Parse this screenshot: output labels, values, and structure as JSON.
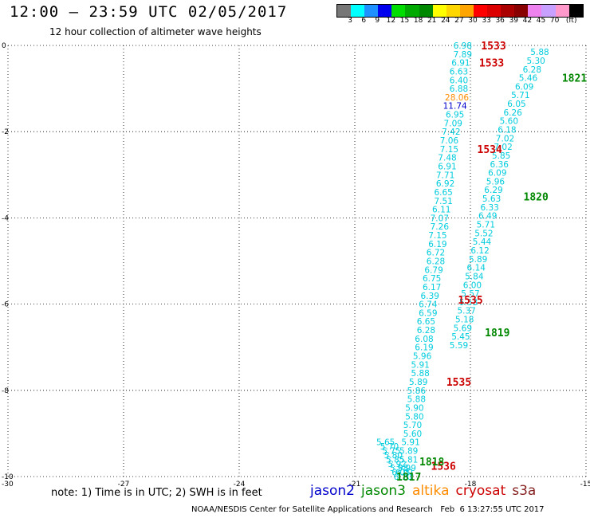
{
  "header": {
    "title": "12:00 – 23:59 UTC 02/05/2017",
    "subtitle": "12 hour collection of altimeter wave heights"
  },
  "colorbar": {
    "colors": [
      "#777777",
      "#00ffff",
      "#1e90ff",
      "#0000ee",
      "#00dd00",
      "#00aa00",
      "#008800",
      "#ffff00",
      "#ffd700",
      "#ffa500",
      "#ff0000",
      "#dd0000",
      "#aa0000",
      "#880000",
      "#ee82ee",
      "#c8a0ff",
      "#ff99cc",
      "#000000"
    ],
    "labels": [
      "3",
      "6",
      "9",
      "12",
      "15",
      "18",
      "21",
      "24",
      "27",
      "30",
      "33",
      "36",
      "39",
      "42",
      "45",
      "70",
      "(ft)"
    ]
  },
  "note": "note: 1) Time is in UTC; 2) SWH is in feet",
  "satellites": [
    {
      "name": "jason2",
      "color": "#0000cc"
    },
    {
      "name": "jason3",
      "color": "#008800"
    },
    {
      "name": "altika",
      "color": "#ff8c00"
    },
    {
      "name": "cryosat",
      "color": "#cc0000"
    },
    {
      "name": "s3a",
      "color": "#882222"
    }
  ],
  "credit": "NOAA/NESDIS Center for Satellite Applications and Research   Feb  6 13:27:55 UTC 2017",
  "chart_data": {
    "type": "scatter",
    "title": "12:00 – 23:59 UTC 02/05/2017",
    "subtitle": "12 hour collection of altimeter wave heights",
    "xlim": [
      -30,
      -15
    ],
    "ylim": [
      -10,
      0
    ],
    "xticks": [
      "-30",
      "-27",
      "-24",
      "-21",
      "-18",
      "-15"
    ],
    "yticks": [
      "0",
      "-2",
      "-4",
      "-6",
      "-8",
      "-10"
    ],
    "grid": true,
    "series": [
      {
        "name": "cryosat",
        "color": "#00ccdd",
        "x": [
          -18.2,
          -18.2,
          -18.25,
          -18.3,
          -18.3,
          -18.3,
          -18.35,
          -18.4,
          -18.4,
          -18.45,
          -18.5,
          -18.55,
          -18.55,
          -18.6,
          -18.6,
          -18.65,
          -18.65,
          -18.7,
          -18.7,
          -18.75,
          -18.8,
          -18.8,
          -18.85,
          -18.85,
          -18.9,
          -18.9,
          -18.95,
          -19.0,
          -19.0,
          -19.05,
          -19.1,
          -19.1,
          -19.15,
          -19.15,
          -19.2,
          -19.2,
          -19.25,
          -19.3,
          -19.3,
          -19.35,
          -19.4,
          -19.4,
          -19.45,
          -19.45,
          -19.5,
          -19.5,
          -19.55,
          -19.6,
          -19.6,
          -19.65,
          -19.7,
          -19.75,
          -19.8,
          -19.85,
          -19.9,
          -19.95,
          -20.0,
          -20.05,
          -20.1,
          -20.2
        ],
        "y": [
          -0.0,
          -0.2,
          -0.4,
          -0.6,
          -0.8,
          -1.0,
          -1.2,
          -1.4,
          -1.6,
          -1.8,
          -2.0,
          -2.2,
          -2.4,
          -2.6,
          -2.8,
          -3.0,
          -3.2,
          -3.4,
          -3.6,
          -3.8,
          -4.0,
          -4.2,
          -4.4,
          -4.6,
          -4.8,
          -5.0,
          -5.2,
          -5.4,
          -5.6,
          -5.8,
          -6.0,
          -6.2,
          -6.4,
          -6.6,
          -6.8,
          -7.0,
          -7.2,
          -7.4,
          -7.6,
          -7.8,
          -8.0,
          -8.2,
          -8.4,
          -8.6,
          -8.8,
          -9.0,
          -9.2,
          -9.4,
          -9.6,
          -9.8,
          -9.9,
          -10.0,
          -9.9,
          -9.8,
          -9.7,
          -9.6,
          -9.5,
          -9.4,
          -9.3,
          -9.2
        ],
        "labels": [
          "6.98",
          "7.89",
          "6.91",
          "6.63",
          "6.40",
          "6.88",
          "28.06",
          "11.74",
          "6.95",
          "7.09",
          "7.42",
          "7.06",
          "7.15",
          "7.48",
          "6.91",
          "7.71",
          "6.92",
          "6.65",
          "7.51",
          "6.11",
          "7.07",
          "7.26",
          "7.15",
          "6.19",
          "6.72",
          "6.28",
          "6.79",
          "6.75",
          "6.17",
          "6.39",
          "6.74",
          "6.59",
          "6.65",
          "6.28",
          "6.08",
          "6.19",
          "5.96",
          "5.91",
          "5.88",
          "5.89",
          "5.86",
          "5.88",
          "5.90",
          "5.80",
          "5.70",
          "5.60",
          "5.91",
          "5.89",
          "5.81",
          "5.99",
          "6.01",
          "6.10",
          "6.05",
          "5.98",
          "5.92",
          "5.85",
          "5.80",
          "5.75",
          "5.70",
          "5.65"
        ]
      },
      {
        "name": "jason3",
        "color": "#00ccdd",
        "x": [
          -16.2,
          -16.3,
          -16.4,
          -16.5,
          -16.6,
          -16.7,
          -16.8,
          -16.9,
          -17.0,
          -17.05,
          -17.1,
          -17.15,
          -17.2,
          -17.25,
          -17.3,
          -17.35,
          -17.4,
          -17.45,
          -17.5,
          -17.55,
          -17.6,
          -17.65,
          -17.7,
          -17.75,
          -17.8,
          -17.85,
          -17.9,
          -17.95,
          -18.0,
          -18.05,
          -18.1,
          -18.15,
          -18.2,
          -18.25,
          -18.3
        ],
        "y": [
          -0.15,
          -0.35,
          -0.55,
          -0.75,
          -0.95,
          -1.15,
          -1.35,
          -1.55,
          -1.75,
          -1.95,
          -2.15,
          -2.35,
          -2.55,
          -2.75,
          -2.95,
          -3.15,
          -3.35,
          -3.55,
          -3.75,
          -3.95,
          -4.15,
          -4.35,
          -4.55,
          -4.75,
          -4.95,
          -5.15,
          -5.35,
          -5.55,
          -5.75,
          -5.95,
          -6.15,
          -6.35,
          -6.55,
          -6.75,
          -6.95
        ],
        "labels": [
          "5.88",
          "5.30",
          "6.28",
          "5.46",
          "6.09",
          "5.71",
          "6.05",
          "6.26",
          "5.60",
          "6.18",
          "7.02",
          "7.02",
          "5.85",
          "6.36",
          "6.09",
          "5.96",
          "6.29",
          "5.63",
          "6.33",
          "6.49",
          "5.71",
          "5.52",
          "5.44",
          "6.12",
          "5.89",
          "6.14",
          "5.84",
          "6.00",
          "5.57",
          "5.53",
          "5.37",
          "5.18",
          "5.69",
          "5.45",
          "5.59"
        ]
      }
    ],
    "annotations": [
      {
        "text": "1533",
        "x": -17.4,
        "y": 0.0,
        "color": "#cc0000"
      },
      {
        "text": "1533",
        "x": -17.45,
        "y": -0.4,
        "color": "#cc0000"
      },
      {
        "text": "1534",
        "x": -17.5,
        "y": -2.4,
        "color": "#cc0000"
      },
      {
        "text": "1535",
        "x": -18.0,
        "y": -5.9,
        "color": "#cc0000"
      },
      {
        "text": "1535",
        "x": -18.3,
        "y": -7.8,
        "color": "#cc0000"
      },
      {
        "text": "1536",
        "x": -18.7,
        "y": -9.75,
        "color": "#cc0000"
      },
      {
        "text": "1821",
        "x": -15.3,
        "y": -0.75,
        "color": "#008800"
      },
      {
        "text": "1820",
        "x": -16.3,
        "y": -3.5,
        "color": "#008800"
      },
      {
        "text": "1819",
        "x": -17.3,
        "y": -6.65,
        "color": "#008800"
      },
      {
        "text": "1818",
        "x": -19.0,
        "y": -9.65,
        "color": "#008800"
      },
      {
        "text": "1817",
        "x": -19.6,
        "y": -10.0,
        "color": "#008800"
      }
    ]
  }
}
